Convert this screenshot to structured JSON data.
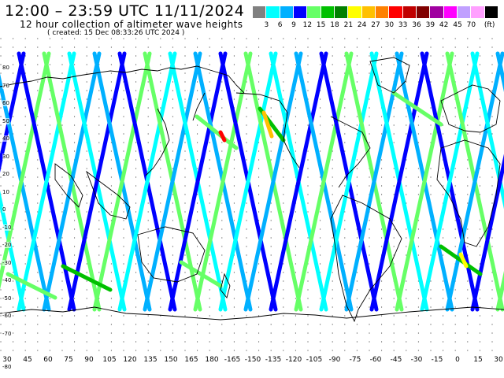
{
  "header": {
    "title": "12:00 – 23:59 UTC 11/11/2024",
    "subtitle": "12 hour collection of altimeter wave heights",
    "created": "( created: 15 Dec 08:33:26 UTC 2024 )"
  },
  "legend": {
    "colors": [
      "#808080",
      "#00ffff",
      "#00b0ff",
      "#0000ff",
      "#66ff66",
      "#00c000",
      "#008000",
      "#ffff00",
      "#ffc000",
      "#ff8000",
      "#ff0000",
      "#c00000",
      "#800000",
      "#a000a0",
      "#ff00ff",
      "#c0a0ff",
      "#ffa0ff",
      "#000000"
    ],
    "labels": [
      "3",
      "6",
      "9",
      "12",
      "15",
      "18",
      "21",
      "24",
      "27",
      "30",
      "33",
      "36",
      "39",
      "42",
      "45",
      "70",
      "(ft)"
    ]
  },
  "axes": {
    "lat_labels": [
      "80",
      "70",
      "60",
      "50",
      "40",
      "30",
      "20",
      "10",
      "0",
      "-10",
      "-20",
      "-30",
      "-40",
      "-50",
      "-60",
      "-70"
    ],
    "lon_labels": [
      "30",
      "45",
      "60",
      "75",
      "90",
      "105",
      "120",
      "135",
      "150",
      "165",
      "180",
      "-165",
      "-150",
      "-135",
      "-120",
      "-105",
      "-90",
      "-75",
      "-60",
      "-45",
      "-30",
      "-15",
      "0",
      "15",
      "30"
    ],
    "corner_label": "-80"
  }
}
